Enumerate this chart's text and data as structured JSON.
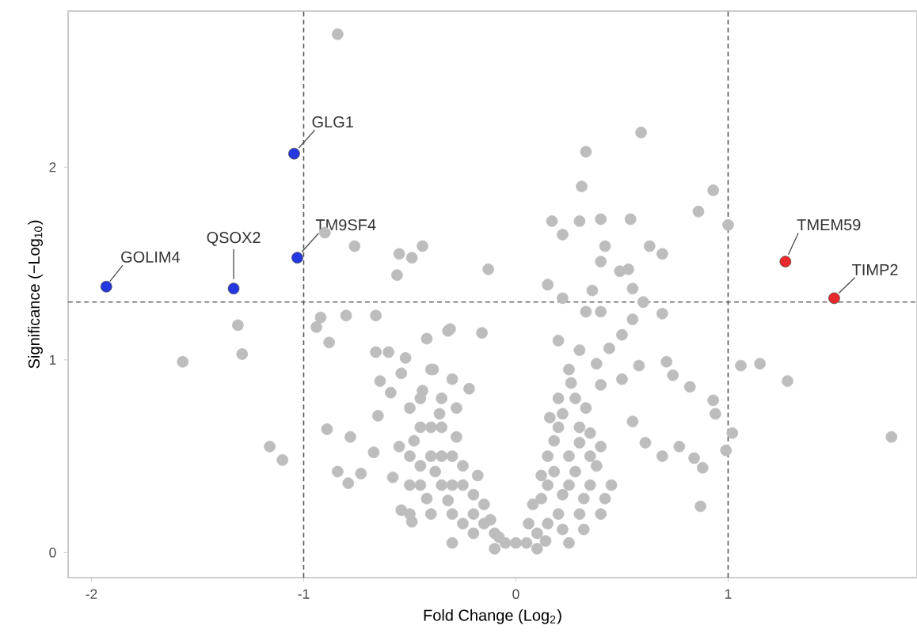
{
  "chart_data": {
    "type": "scatter",
    "xlabel": "Fold Change (Log$_{2}$)",
    "ylabel": "Significance (−Log$_{10}$)",
    "xlim": [
      -2.11,
      1.89
    ],
    "ylim": [
      -0.13,
      2.81
    ],
    "xticks": [
      -2,
      -1,
      0,
      1
    ],
    "yticks": [
      0,
      1,
      2
    ],
    "grid": false,
    "marker": "circle",
    "series": [
      {
        "color": "#bdbdbd",
        "x": [
          -0.84,
          -0.9,
          -0.76,
          -0.55,
          -0.49,
          -0.44,
          -0.56,
          -1.31,
          -1.29,
          -1.57,
          -1.16,
          -1.1,
          -0.92,
          -0.94,
          -0.8,
          -0.66,
          -0.88,
          -0.89,
          -0.78,
          -0.84,
          -0.79,
          -0.73,
          -0.66,
          -0.6,
          -0.52,
          -0.42,
          -0.32,
          -0.64,
          -0.59,
          -0.54,
          -0.39,
          -0.44,
          -0.65,
          -0.67,
          -0.58,
          -0.49,
          -0.54,
          0.59,
          0.33,
          0.31,
          0.93,
          0.86,
          1.0,
          0.17,
          0.3,
          0.4,
          0.54,
          0.22,
          0.42,
          0.63,
          0.69,
          0.4,
          0.49,
          0.53,
          -0.13,
          0.15,
          0.36,
          0.55,
          0.22,
          0.6,
          0.33,
          0.4,
          0.69,
          0.55,
          -0.16,
          -0.31,
          0.5,
          0.44,
          0.71,
          0.74,
          0.58,
          1.06,
          1.15,
          1.28,
          1.77,
          0.82,
          0.93,
          0.94,
          1.02,
          0.99,
          0.77,
          0.88,
          0.87,
          0.84,
          0.69,
          0.61,
          0.55,
          0.5,
          0.38,
          0.4,
          0.0,
          -0.05,
          -0.1,
          -0.15,
          -0.2,
          -0.3,
          -0.4,
          -0.5,
          -0.25,
          -0.35,
          -0.45,
          -0.3,
          -0.4,
          -0.5,
          -0.35,
          -0.45,
          -0.35,
          -0.45,
          -0.28,
          -0.2,
          -0.3,
          -0.1,
          0.05,
          0.1,
          0.15,
          0.2,
          0.3,
          0.4,
          0.08,
          0.15,
          0.25,
          0.35,
          0.45,
          0.15,
          0.25,
          0.35,
          0.2,
          0.3,
          0.2,
          0.28,
          0.25,
          0.3,
          0.2,
          0.1,
          0.25,
          -0.4,
          -0.3,
          -0.22,
          -0.15,
          -0.2,
          -0.25,
          -0.3,
          -0.35,
          -0.4,
          -0.45,
          -0.5,
          -0.55,
          -0.5,
          -0.38,
          -0.28,
          -0.32,
          -0.42,
          -0.48,
          -0.36,
          -0.25,
          -0.12,
          -0.08,
          -0.18,
          0.12,
          0.18,
          0.22,
          0.28,
          0.32,
          0.38,
          0.42,
          0.18,
          0.22,
          0.3,
          0.35,
          0.26,
          0.16,
          0.33,
          0.12,
          0.06,
          0.14,
          0.22,
          0.32,
          0.4
        ],
        "values": [
          2.69,
          1.66,
          1.59,
          1.55,
          1.53,
          1.59,
          1.44,
          1.18,
          1.03,
          0.99,
          0.55,
          0.48,
          1.22,
          1.17,
          1.23,
          1.23,
          1.09,
          0.64,
          0.6,
          0.42,
          0.36,
          0.41,
          1.04,
          1.04,
          1.01,
          1.11,
          1.15,
          0.89,
          0.83,
          0.93,
          0.95,
          0.84,
          0.71,
          0.52,
          0.39,
          0.16,
          0.22,
          2.18,
          2.08,
          1.9,
          1.88,
          1.77,
          1.7,
          1.72,
          1.72,
          1.73,
          1.73,
          1.65,
          1.59,
          1.59,
          1.55,
          1.51,
          1.46,
          1.47,
          1.47,
          1.39,
          1.36,
          1.37,
          1.32,
          1.3,
          1.25,
          1.25,
          1.24,
          1.21,
          1.14,
          1.16,
          1.13,
          1.06,
          0.99,
          0.92,
          0.97,
          0.97,
          0.98,
          0.89,
          0.6,
          0.86,
          0.79,
          0.72,
          0.62,
          0.53,
          0.55,
          0.44,
          0.24,
          0.49,
          0.5,
          0.57,
          0.68,
          0.9,
          0.98,
          0.87,
          0.05,
          0.05,
          0.1,
          0.15,
          0.2,
          0.2,
          0.2,
          0.2,
          0.35,
          0.35,
          0.35,
          0.5,
          0.5,
          0.5,
          0.65,
          0.65,
          0.8,
          0.8,
          0.75,
          0.1,
          0.05,
          0.02,
          0.05,
          0.1,
          0.15,
          0.2,
          0.2,
          0.2,
          0.25,
          0.35,
          0.35,
          0.35,
          0.35,
          0.5,
          0.5,
          0.5,
          0.65,
          0.65,
          0.8,
          0.8,
          0.95,
          1.05,
          1.1,
          0.02,
          0.05,
          0.95,
          0.9,
          0.85,
          0.25,
          0.3,
          0.45,
          0.35,
          0.5,
          0.65,
          0.45,
          0.35,
          0.55,
          0.75,
          0.42,
          0.6,
          0.27,
          0.28,
          0.58,
          0.72,
          0.15,
          0.17,
          0.08,
          0.4,
          0.28,
          0.42,
          0.3,
          0.42,
          0.28,
          0.45,
          0.28,
          0.58,
          0.72,
          0.57,
          0.62,
          0.88,
          0.7,
          0.75,
          0.4,
          0.15,
          0.06,
          0.12,
          0.12,
          0.55
        ]
      },
      {
        "color": "#2437e0",
        "x": [
          -1.045,
          -1.03,
          -1.33,
          -1.93
        ],
        "values": [
          2.07,
          1.53,
          1.37,
          1.38
        ]
      },
      {
        "color": "#e8282b",
        "x": [
          1.27,
          1.5
        ],
        "values": [
          1.51,
          1.32
        ]
      }
    ],
    "ref_lines": [
      {
        "axis": "x",
        "value": -1,
        "color": "#555555",
        "line_style": "dashed"
      },
      {
        "axis": "x",
        "value": 1,
        "color": "#555555",
        "line_style": "dashed"
      },
      {
        "axis": "y",
        "value": 1.3,
        "color": "#555555",
        "line_style": "dashed"
      }
    ],
    "annotations": [
      {
        "text": "GLG1",
        "x": -1.045,
        "y": 2.07
      },
      {
        "text": "TM9SF4",
        "x": -1.03,
        "y": 1.53
      },
      {
        "text": "QSOX2",
        "x": -1.33,
        "y": 1.37
      },
      {
        "text": "GOLIM4",
        "x": -1.93,
        "y": 1.38
      },
      {
        "text": "TMEM59",
        "x": 1.27,
        "y": 1.51
      },
      {
        "text": "TIMP2",
        "x": 1.5,
        "y": 1.32
      }
    ]
  }
}
